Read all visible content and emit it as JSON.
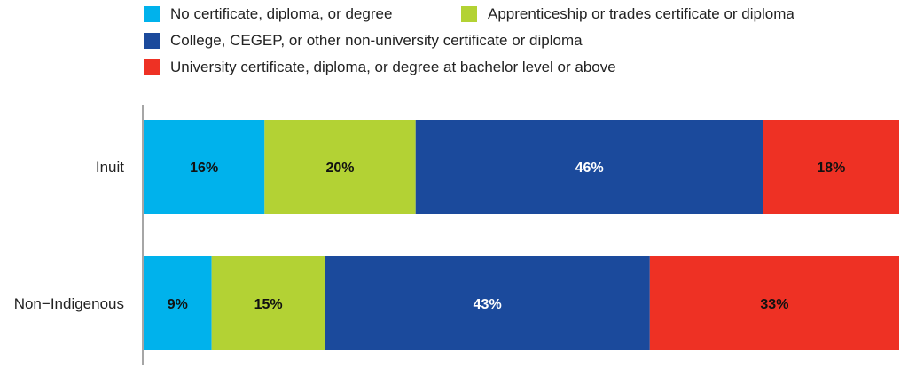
{
  "chart_data": {
    "type": "bar",
    "orientation": "horizontal",
    "stacked": true,
    "title": "",
    "xlabel": "",
    "ylabel": "",
    "categories": [
      "Inuit",
      "Non−Indigenous"
    ],
    "series": [
      {
        "name": "No certificate, diploma, or degree",
        "values": [
          16,
          9
        ],
        "labels": [
          "16%",
          "9%"
        ],
        "color": "#00b2ec",
        "label_color": "#111111"
      },
      {
        "name": "Apprenticeship or trades certificate or diploma",
        "values": [
          20,
          15
        ],
        "labels": [
          "20%",
          "15%"
        ],
        "color": "#b3d234",
        "label_color": "#111111"
      },
      {
        "name": "College, CEGEP, or other non-university certificate or diploma",
        "values": [
          46,
          43
        ],
        "labels": [
          "46%",
          "43%"
        ],
        "color": "#1b4a9c",
        "label_color": "#ffffff"
      },
      {
        "name": "University certificate, diploma, or degree at bachelor level or above",
        "values": [
          18,
          33
        ],
        "labels": [
          "18%",
          "33%"
        ],
        "color": "#ee3124",
        "label_color": "#111111"
      }
    ],
    "legend_position": "top",
    "grid": false
  },
  "colors": {
    "axis": "#888888",
    "text": "#222222"
  }
}
